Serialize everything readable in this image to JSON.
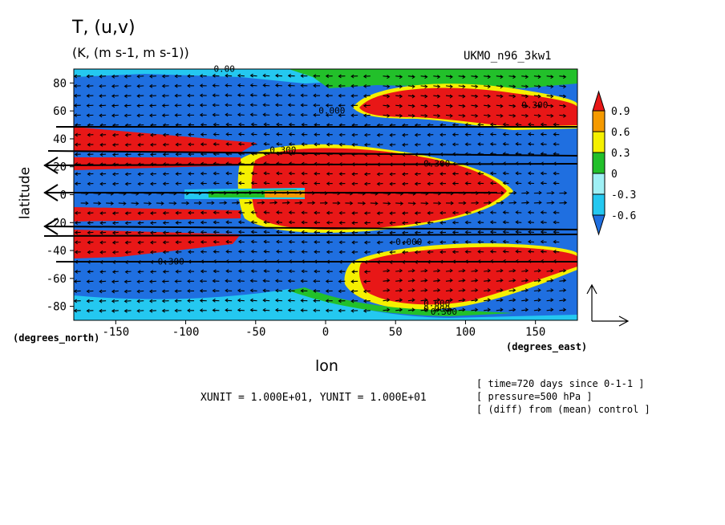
{
  "header": {
    "title": "T, (u,v)",
    "subtitle": "(K, (m s-1, m s-1))",
    "model": "UKMO_n96_3kw1"
  },
  "axes": {
    "xlabel": "lon",
    "ylabel": "latitude",
    "x_units": "(degrees_east)",
    "y_units": "(degrees_north)"
  },
  "footer": {
    "units_line": "XUNIT = 1.000E+01, YUNIT = 1.000E+01",
    "meta_lines": [
      "[ time=720 days since 0-1-1 ]",
      "[ pressure=500 hPa ]",
      "[ (diff) from (mean) control ]"
    ]
  },
  "chart_data": {
    "type": "heatmap",
    "title": "T, (u,v)",
    "xlabel": "lon",
    "ylabel": "latitude",
    "xlim": [
      -180,
      180
    ],
    "ylim": [
      -90,
      90
    ],
    "x_ticks": [
      -150,
      -100,
      -50,
      0,
      50,
      100,
      150
    ],
    "y_ticks": [
      80,
      60,
      40,
      20,
      0,
      -20,
      -40,
      -60,
      -80
    ],
    "x_tick_labels": [
      "-150",
      "-100",
      "-50",
      "0",
      "50",
      "100",
      "150"
    ],
    "y_tick_labels": [
      "80",
      "60",
      "40",
      "20",
      "0",
      "-20",
      "-40",
      "-60",
      "-80"
    ],
    "colorbar": {
      "levels": [
        -0.6,
        -0.3,
        0,
        0.3,
        0.6,
        0.9
      ],
      "labels": [
        "0.9",
        "0.6",
        "0.3",
        "0",
        "-0.3",
        "-0.6"
      ],
      "colors": [
        "#1f6fe0",
        "#24c8f0",
        "#9ff0f5",
        "#22c02a",
        "#f5f000",
        "#f59a00",
        "#e81717"
      ]
    },
    "fill_colors": {
      "very_low": "#1f6fe0",
      "low": "#24c8f0",
      "near_zero": "#9ff0f5",
      "zero_band": "#22c02a",
      "mid": "#f5f000",
      "high": "#f59a00",
      "very_high": "#e81717"
    },
    "contour_labels": [
      "0.00",
      "0.000",
      "0.300",
      "0.600",
      "0.900"
    ],
    "grid": false,
    "vector_field": "wind (u,v)"
  }
}
